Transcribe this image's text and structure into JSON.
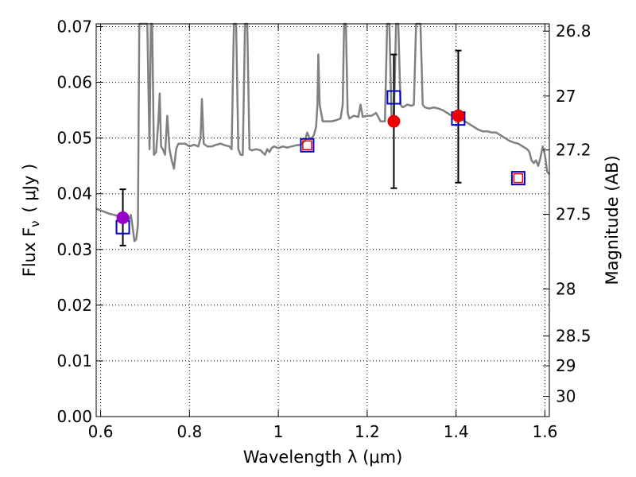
{
  "chart_data": {
    "type": "scatter",
    "xlabel": "Wavelength  λ (μm)",
    "ylabel_left": "Flux  F",
    "ylabel_left_sub": "ν",
    "ylabel_left_unit": "( μJy )",
    "ylabel_right": "Magnitude (AB)",
    "xlim": [
      0.59,
      1.61
    ],
    "ylim": [
      0.0,
      0.0705
    ],
    "grid": true,
    "x_ticks": [
      0.6,
      0.8,
      1.0,
      1.2,
      1.4,
      1.6
    ],
    "x_tick_labels": [
      "0.6",
      "0.8",
      "1",
      "1.2",
      "1.4",
      "1.6"
    ],
    "y_ticks": [
      0.0,
      0.01,
      0.02,
      0.03,
      0.04,
      0.05,
      0.06,
      0.07
    ],
    "y_tick_labels": [
      "0.00",
      "0.01",
      "0.02",
      "0.03",
      "0.04",
      "0.05",
      "0.06",
      "0.07"
    ],
    "right_ticks": [
      {
        "label": "26.8",
        "mag": 26.8
      },
      {
        "label": "27",
        "mag": 27.0
      },
      {
        "label": "27.2",
        "mag": 27.2
      },
      {
        "label": "27.5",
        "mag": 27.5
      },
      {
        "label": "28",
        "mag": 28.0
      },
      {
        "label": "28.5",
        "mag": 28.5
      },
      {
        "label": "29",
        "mag": 29.0
      },
      {
        "label": "30",
        "mag": 30.0
      }
    ],
    "model_spectrum": {
      "color": "#808080",
      "points": [
        [
          0.59,
          0.0373
        ],
        [
          0.6,
          0.037
        ],
        [
          0.61,
          0.0367
        ],
        [
          0.62,
          0.0364
        ],
        [
          0.63,
          0.0362
        ],
        [
          0.64,
          0.036
        ],
        [
          0.65,
          0.0358
        ],
        [
          0.66,
          0.0356
        ],
        [
          0.665,
          0.0355
        ],
        [
          0.668,
          0.0362
        ],
        [
          0.672,
          0.034
        ],
        [
          0.676,
          0.0315
        ],
        [
          0.68,
          0.0318
        ],
        [
          0.684,
          0.0345
        ],
        [
          0.687,
          0.0705
        ],
        [
          0.7,
          0.0705
        ],
        [
          0.705,
          0.0705
        ],
        [
          0.71,
          0.048
        ],
        [
          0.713,
          0.0705
        ],
        [
          0.716,
          0.0705
        ],
        [
          0.72,
          0.047
        ],
        [
          0.725,
          0.0475
        ],
        [
          0.73,
          0.053
        ],
        [
          0.733,
          0.058
        ],
        [
          0.736,
          0.0485
        ],
        [
          0.74,
          0.048
        ],
        [
          0.745,
          0.047
        ],
        [
          0.75,
          0.054
        ],
        [
          0.755,
          0.048
        ],
        [
          0.76,
          0.046
        ],
        [
          0.765,
          0.0445
        ],
        [
          0.77,
          0.048
        ],
        [
          0.775,
          0.049
        ],
        [
          0.78,
          0.049
        ],
        [
          0.79,
          0.049
        ],
        [
          0.8,
          0.0485
        ],
        [
          0.81,
          0.0488
        ],
        [
          0.82,
          0.0485
        ],
        [
          0.825,
          0.05
        ],
        [
          0.828,
          0.057
        ],
        [
          0.832,
          0.049
        ],
        [
          0.84,
          0.0485
        ],
        [
          0.85,
          0.0485
        ],
        [
          0.86,
          0.0488
        ],
        [
          0.87,
          0.049
        ],
        [
          0.88,
          0.0487
        ],
        [
          0.89,
          0.0485
        ],
        [
          0.895,
          0.048
        ],
        [
          0.9,
          0.0705
        ],
        [
          0.905,
          0.0705
        ],
        [
          0.91,
          0.048
        ],
        [
          0.915,
          0.047
        ],
        [
          0.92,
          0.047
        ],
        [
          0.925,
          0.0705
        ],
        [
          0.93,
          0.0705
        ],
        [
          0.935,
          0.048
        ],
        [
          0.94,
          0.0478
        ],
        [
          0.95,
          0.048
        ],
        [
          0.96,
          0.0478
        ],
        [
          0.97,
          0.047
        ],
        [
          0.975,
          0.048
        ],
        [
          0.98,
          0.0475
        ],
        [
          0.985,
          0.0482
        ],
        [
          0.99,
          0.0485
        ],
        [
          1.0,
          0.0482
        ],
        [
          1.01,
          0.0485
        ],
        [
          1.02,
          0.0483
        ],
        [
          1.03,
          0.0485
        ],
        [
          1.04,
          0.0487
        ],
        [
          1.05,
          0.0488
        ],
        [
          1.06,
          0.0495
        ],
        [
          1.065,
          0.051
        ],
        [
          1.07,
          0.05
        ],
        [
          1.075,
          0.05
        ],
        [
          1.08,
          0.0505
        ],
        [
          1.085,
          0.052
        ],
        [
          1.088,
          0.056
        ],
        [
          1.09,
          0.065
        ],
        [
          1.093,
          0.056
        ],
        [
          1.1,
          0.053
        ],
        [
          1.11,
          0.053
        ],
        [
          1.12,
          0.053
        ],
        [
          1.13,
          0.0532
        ],
        [
          1.14,
          0.0535
        ],
        [
          1.145,
          0.056
        ],
        [
          1.148,
          0.0705
        ],
        [
          1.152,
          0.0705
        ],
        [
          1.156,
          0.0545
        ],
        [
          1.16,
          0.0535
        ],
        [
          1.17,
          0.054
        ],
        [
          1.18,
          0.0538
        ],
        [
          1.185,
          0.056
        ],
        [
          1.19,
          0.0538
        ],
        [
          1.2,
          0.054
        ],
        [
          1.21,
          0.054
        ],
        [
          1.22,
          0.0545
        ],
        [
          1.23,
          0.053
        ],
        [
          1.24,
          0.053
        ],
        [
          1.245,
          0.0705
        ],
        [
          1.25,
          0.0705
        ],
        [
          1.255,
          0.053
        ],
        [
          1.26,
          0.053
        ],
        [
          1.265,
          0.0705
        ],
        [
          1.27,
          0.0705
        ],
        [
          1.275,
          0.056
        ],
        [
          1.28,
          0.0555
        ],
        [
          1.29,
          0.056
        ],
        [
          1.3,
          0.0558
        ],
        [
          1.305,
          0.056
        ],
        [
          1.31,
          0.0705
        ],
        [
          1.32,
          0.0705
        ],
        [
          1.325,
          0.056
        ],
        [
          1.33,
          0.0555
        ],
        [
          1.34,
          0.0553
        ],
        [
          1.35,
          0.0555
        ],
        [
          1.36,
          0.0553
        ],
        [
          1.37,
          0.055
        ],
        [
          1.38,
          0.0545
        ],
        [
          1.39,
          0.054
        ],
        [
          1.4,
          0.054
        ],
        [
          1.41,
          0.0535
        ],
        [
          1.42,
          0.053
        ],
        [
          1.43,
          0.0525
        ],
        [
          1.44,
          0.052
        ],
        [
          1.45,
          0.0515
        ],
        [
          1.46,
          0.0512
        ],
        [
          1.47,
          0.0512
        ],
        [
          1.48,
          0.051
        ],
        [
          1.49,
          0.051
        ],
        [
          1.5,
          0.0505
        ],
        [
          1.51,
          0.05
        ],
        [
          1.52,
          0.0495
        ],
        [
          1.53,
          0.0492
        ],
        [
          1.54,
          0.049
        ],
        [
          1.55,
          0.0485
        ],
        [
          1.56,
          0.048
        ],
        [
          1.565,
          0.0475
        ],
        [
          1.57,
          0.046
        ],
        [
          1.575,
          0.0455
        ],
        [
          1.58,
          0.046
        ],
        [
          1.585,
          0.045
        ],
        [
          1.59,
          0.0465
        ],
        [
          1.595,
          0.0485
        ],
        [
          1.6,
          0.047
        ],
        [
          1.605,
          0.044
        ],
        [
          1.61,
          0.0435
        ]
      ]
    },
    "model_photometry": {
      "marker": "open-square",
      "color": "#0000cc",
      "points": [
        [
          0.65,
          0.034
        ],
        [
          1.065,
          0.0487
        ],
        [
          1.26,
          0.0573
        ],
        [
          1.405,
          0.0535
        ],
        [
          1.54,
          0.0428
        ]
      ]
    },
    "small_squares": {
      "marker": "open-square",
      "color": "#ee0000",
      "points": [
        [
          1.065,
          0.0487
        ],
        [
          1.54,
          0.0428
        ]
      ]
    },
    "observed": {
      "color": "#ee0000",
      "points": [
        {
          "x": 1.26,
          "y": 0.053,
          "err_low": 0.041,
          "err_high": 0.065
        },
        {
          "x": 1.405,
          "y": 0.054,
          "err_low": 0.042,
          "err_high": 0.0657
        }
      ]
    },
    "observed_special": {
      "color": "#9900cc",
      "points": [
        {
          "x": 0.65,
          "y": 0.0357,
          "err_low": 0.0307,
          "err_high": 0.0408
        }
      ]
    }
  }
}
